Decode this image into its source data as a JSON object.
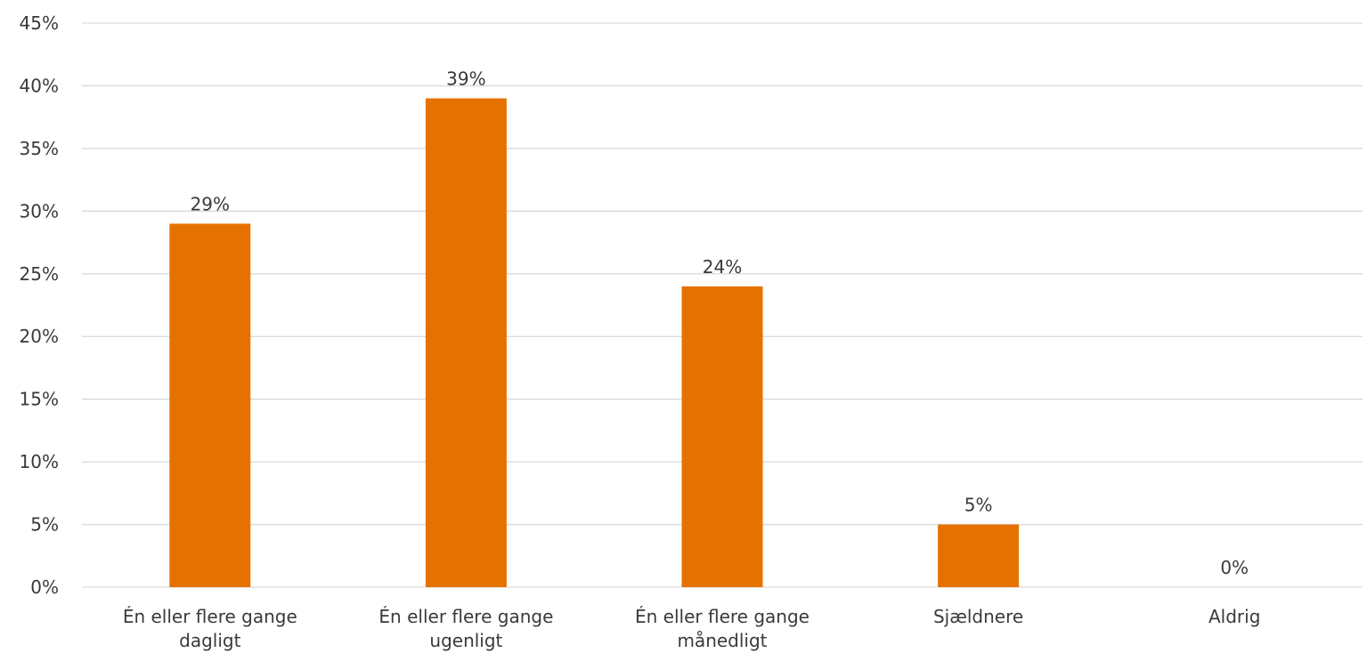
{
  "chart_data": {
    "type": "bar",
    "title": "",
    "xlabel": "",
    "ylabel": "",
    "categories": [
      [
        "Én eller flere gange",
        "dagligt"
      ],
      [
        "Én eller flere gange",
        "ugenligt"
      ],
      [
        "Én eller flere gange",
        "månedligt"
      ],
      [
        "Sjældnere"
      ],
      [
        "Aldrig"
      ]
    ],
    "values": [
      29,
      39,
      24,
      5,
      0
    ],
    "data_labels": [
      "29%",
      "39%",
      "24%",
      "5%",
      "0%"
    ],
    "ylim": [
      0,
      45
    ],
    "y_ticks": [
      0,
      5,
      10,
      15,
      20,
      25,
      30,
      35,
      40,
      45
    ],
    "y_tick_labels": [
      "0%",
      "5%",
      "10%",
      "15%",
      "20%",
      "25%",
      "30%",
      "35%",
      "40%",
      "45%"
    ],
    "grid": true,
    "legend": "none",
    "colors": {
      "bar": "#e57200",
      "grid": "#d9d9d9",
      "text": "#3a3a3a"
    }
  }
}
